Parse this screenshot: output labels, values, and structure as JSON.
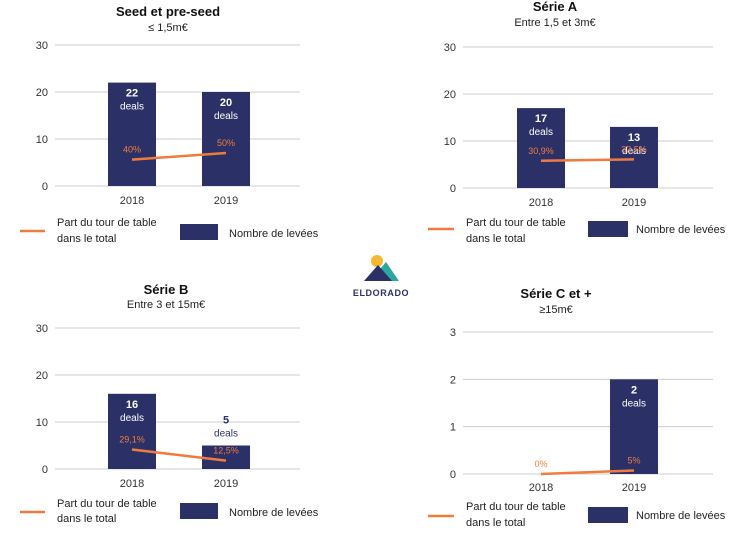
{
  "colors": {
    "bar": "#2b3166",
    "line": "#f07b3f",
    "grid": "#cccccc",
    "axis_text": "#333333",
    "logo_text": "#2b3166",
    "logo_mountain": "#2b3166",
    "logo_sun": "#f5b82e",
    "logo_teal": "#2ba8a0"
  },
  "logo": {
    "text": "ELDORADO"
  },
  "chart_data": [
    {
      "type": "bar",
      "title": "Seed et pre-seed",
      "subtitle": "≤ 1,5m€",
      "categories": [
        "2018",
        "2019"
      ],
      "ylim": [
        0,
        30
      ],
      "yticks": [
        0,
        10,
        20,
        30
      ],
      "grid": true,
      "legend_position": "bottom",
      "series": [
        {
          "name": "Nombre de levées",
          "values": [
            22,
            20
          ],
          "labels": [
            "22",
            "20"
          ],
          "unit_labels": [
            "deals",
            "deals"
          ]
        }
      ],
      "line_series": {
        "name": "Part du tour de table dans le total",
        "legend_lines": [
          "Part du tour de table",
          "dans le total"
        ],
        "values": [
          40,
          50
        ],
        "labels": [
          "40%",
          "50%"
        ]
      }
    },
    {
      "type": "bar",
      "title": "Série A",
      "subtitle": "Entre 1,5 et 3m€",
      "categories": [
        "2018",
        "2019"
      ],
      "ylim": [
        0,
        30
      ],
      "yticks": [
        0,
        10,
        20,
        30
      ],
      "grid": true,
      "legend_position": "bottom",
      "series": [
        {
          "name": "Nombre de levées",
          "values": [
            17,
            13
          ],
          "labels": [
            "17",
            "13"
          ],
          "unit_labels": [
            "deals",
            "deals"
          ]
        }
      ],
      "line_series": {
        "name": "Part du tour de table dans le total",
        "legend_lines": [
          "Part du tour de table",
          "dans le total"
        ],
        "values": [
          30.9,
          32.5
        ],
        "labels": [
          "30,9%",
          "32,5%"
        ]
      }
    },
    {
      "type": "bar",
      "title": "Série B",
      "subtitle": "Entre 3 et 15m€",
      "categories": [
        "2018",
        "2019"
      ],
      "ylim": [
        0,
        30
      ],
      "yticks": [
        0,
        10,
        20,
        30
      ],
      "grid": true,
      "legend_position": "bottom",
      "series": [
        {
          "name": "Nombre de levées",
          "values": [
            16,
            5
          ],
          "labels": [
            "16",
            "5"
          ],
          "unit_labels": [
            "deals",
            "deals"
          ]
        }
      ],
      "line_series": {
        "name": "Part du tour de table dans le total",
        "legend_lines": [
          "Part du tour de table",
          "dans le total"
        ],
        "values": [
          29.1,
          12.5
        ],
        "labels": [
          "29,1%",
          "12,5%"
        ]
      }
    },
    {
      "type": "bar",
      "title": "Série C et +",
      "subtitle": "≥15m€",
      "categories": [
        "2018",
        "2019"
      ],
      "ylim": [
        0,
        3
      ],
      "yticks": [
        0,
        1,
        2,
        3
      ],
      "grid": true,
      "legend_position": "bottom",
      "series": [
        {
          "name": "Nombre de levées",
          "values": [
            0,
            2
          ],
          "labels": [
            "",
            "2"
          ],
          "unit_labels": [
            "",
            "deals"
          ]
        }
      ],
      "line_series": {
        "name": "Part du tour de table dans le total",
        "legend_lines": [
          "Part du tour de table",
          "dans le total"
        ],
        "values": [
          0,
          5
        ],
        "labels": [
          "0%",
          "5%"
        ]
      }
    }
  ]
}
